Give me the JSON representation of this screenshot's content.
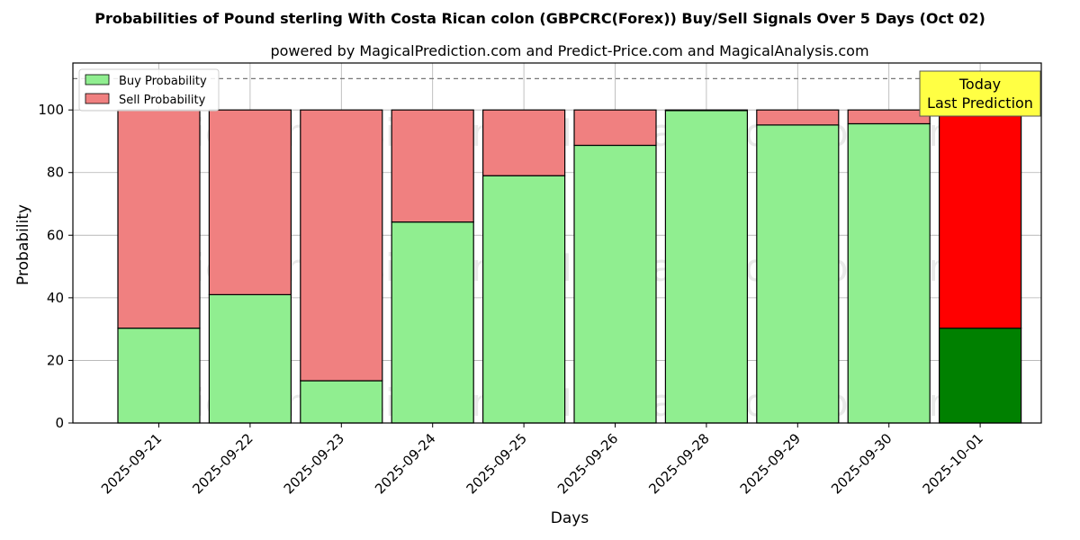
{
  "title": "Probabilities of Pound sterling With Costa Rican colon (GBPCRC(Forex)) Buy/Sell Signals Over 5 Days (Oct 02)",
  "subtitle": "powered by MagicalPrediction.com and Predict-Price.com and MagicalAnalysis.com",
  "watermarks": [
    "MagicalAnalysis.com",
    "MagicalPrediction.com"
  ],
  "today_label": [
    "Today",
    "Last Prediction"
  ],
  "colors": {
    "buy": "#90ee90",
    "sell": "#f08080",
    "buy_last": "#008000",
    "sell_last": "#ff0000",
    "today_box": "#ffff44"
  },
  "chart_data": {
    "type": "bar",
    "stacked": true,
    "xlabel": "Days",
    "ylabel": "Probability",
    "ylim": [
      0,
      115
    ],
    "yticks": [
      0,
      20,
      40,
      60,
      80,
      100
    ],
    "reference_line": 110,
    "grid": true,
    "legend_position": "top-left",
    "categories": [
      "2025-09-21",
      "2025-09-22",
      "2025-09-23",
      "2025-09-24",
      "2025-09-25",
      "2025-09-26",
      "2025-09-28",
      "2025-09-29",
      "2025-09-30",
      "2025-10-01"
    ],
    "series": [
      {
        "name": "Buy Probability",
        "values": [
          30.3,
          41.0,
          13.5,
          64.2,
          79.0,
          88.7,
          99.8,
          95.2,
          95.6,
          30.3
        ]
      },
      {
        "name": "Sell Probability",
        "values": [
          69.7,
          59.0,
          86.5,
          35.8,
          21.0,
          11.3,
          0.2,
          4.8,
          4.4,
          69.7
        ]
      }
    ]
  }
}
